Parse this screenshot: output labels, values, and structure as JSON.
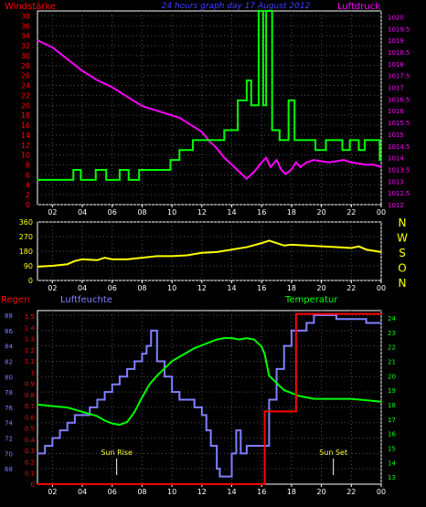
{
  "header": {
    "left": "Windstärke",
    "center": "24 hours graph day  17 August 2012",
    "right": "Luftdruck"
  },
  "colors": {
    "background": "#000000",
    "frame": "#ffffff",
    "wind": "#00ff00",
    "pressure": "#ff00ff",
    "direction": "#ffff00",
    "humidity": "#8080ff",
    "temperature": "#00ff00",
    "rain": "#ff0000",
    "grid": "#505050",
    "annotation": "#ffff40",
    "center_title": "#4040ff"
  },
  "chart_data": [
    {
      "type": "line",
      "panel": "wind-pressure",
      "x_ticks": [
        "02",
        "04",
        "06",
        "08",
        "10",
        "12",
        "14",
        "16",
        "18",
        "20",
        "22",
        "00"
      ],
      "xlim": [
        1,
        24
      ],
      "left_axis": {
        "label": "Windstärke",
        "ticks": [
          "0",
          "2",
          "4",
          "6",
          "8",
          "10",
          "12",
          "14",
          "16",
          "18",
          "20",
          "22",
          "24",
          "26",
          "28",
          "30",
          "32",
          "34",
          "36",
          "38"
        ],
        "ylim": [
          0,
          39
        ]
      },
      "right_axis": {
        "label": "Luftdruck",
        "ticks": [
          "1012",
          "1012.5",
          "1013",
          "1013.5",
          "1014",
          "1014.5",
          "1015",
          "1015.5",
          "1016",
          "1016.5",
          "1017",
          "1017.5",
          "1018",
          "1018.5",
          "1019",
          "1019.5",
          "1020"
        ],
        "ylim": [
          1012,
          1020.25
        ]
      },
      "series": [
        {
          "name": "Windstärke",
          "axis": "left",
          "color": "#00ff00",
          "step": true,
          "x": [
            1,
            3.4,
            3.9,
            4.5,
            4.9,
            5.6,
            5.9,
            6.5,
            7.1,
            7.8,
            9.9,
            10.5,
            11.4,
            12.2,
            13.5,
            14.4,
            15.0,
            15.3,
            15.8,
            16.1,
            16.3,
            16.7,
            17.2,
            17.8,
            18.2,
            18.9,
            19.6,
            20.3,
            21.4,
            21.9,
            22.5,
            22.9,
            23.9,
            24
          ],
          "y": [
            5,
            7,
            5,
            5,
            7,
            5,
            5,
            7,
            5,
            7,
            9,
            11,
            13,
            13,
            15,
            21,
            25,
            20,
            39,
            20,
            39,
            15,
            13,
            21,
            13,
            13,
            11,
            13,
            11,
            13,
            11,
            13,
            9,
            9
          ]
        },
        {
          "name": "Luftdruck",
          "axis": "right",
          "color": "#ff00ff",
          "x": [
            1,
            2,
            3,
            4,
            5,
            6,
            7,
            8,
            9,
            10,
            10.5,
            11,
            11.5,
            12,
            12.5,
            13,
            13.5,
            14,
            14.5,
            15,
            15.5,
            16,
            16.3,
            16.6,
            17,
            17.3,
            17.6,
            18,
            18.3,
            18.6,
            19,
            19.5,
            20,
            20.5,
            21,
            21.5,
            22,
            22.5,
            23,
            23.5,
            24
          ],
          "y": [
            1019.0,
            1018.7,
            1018.2,
            1017.7,
            1017.3,
            1017.0,
            1016.6,
            1016.2,
            1016.0,
            1015.8,
            1015.7,
            1015.5,
            1015.3,
            1015.1,
            1014.7,
            1014.4,
            1014.0,
            1013.7,
            1013.4,
            1013.1,
            1013.4,
            1013.8,
            1014.0,
            1013.6,
            1013.9,
            1013.5,
            1013.3,
            1013.5,
            1013.8,
            1013.6,
            1013.8,
            1013.9,
            1013.85,
            1013.8,
            1013.85,
            1013.9,
            1013.8,
            1013.75,
            1013.7,
            1013.7,
            1013.6
          ]
        }
      ]
    },
    {
      "type": "line",
      "panel": "wind-direction",
      "x_ticks": [
        "02",
        "04",
        "06",
        "08",
        "10",
        "12",
        "14",
        "16",
        "18",
        "20",
        "22",
        "00"
      ],
      "xlim": [
        1,
        24
      ],
      "left_axis": {
        "ticks": [
          "0",
          "90",
          "180",
          "270",
          "360"
        ],
        "ylim": [
          0,
          360
        ]
      },
      "right_axis": {
        "ticks": [
          "N",
          "W",
          "S",
          "O",
          "N"
        ]
      },
      "series": [
        {
          "name": "Windrichtung",
          "axis": "left",
          "color": "#ffff00",
          "x": [
            1,
            2,
            3,
            3.5,
            4,
            5,
            5.5,
            6,
            7,
            8,
            9,
            10,
            11,
            12,
            13,
            14,
            15,
            16,
            16.5,
            17,
            17.5,
            18,
            19,
            20,
            21,
            22,
            22.5,
            23,
            24
          ],
          "y": [
            85,
            90,
            100,
            120,
            130,
            125,
            140,
            130,
            130,
            140,
            150,
            150,
            155,
            170,
            175,
            190,
            205,
            230,
            245,
            230,
            215,
            220,
            215,
            210,
            205,
            200,
            210,
            190,
            175
          ]
        }
      ]
    },
    {
      "type": "line",
      "panel": "humidity-temperature-rain",
      "x_ticks": [
        "02",
        "04",
        "06",
        "08",
        "10",
        "12",
        "14",
        "16",
        "18",
        "20",
        "22",
        "00"
      ],
      "xlim": [
        1,
        24
      ],
      "labels": {
        "rain": "Regen",
        "humidity": "Luftfeuchte",
        "temperature": "Temperatur"
      },
      "axis_rain": {
        "ticks": [
          "0",
          "0.1",
          "0.2",
          "0.3",
          "0.4",
          "0.5",
          "0.6",
          "0.7",
          "0.8",
          "0.9",
          "1",
          "1.1",
          "1.2",
          "1.3",
          "1.4",
          "1.5"
        ],
        "ylim": [
          0,
          1.55
        ]
      },
      "axis_humidity": {
        "ticks": [
          "68",
          "70",
          "72",
          "74",
          "76",
          "78",
          "80",
          "82",
          "84",
          "86",
          "88"
        ],
        "ylim": [
          66,
          88.6
        ]
      },
      "axis_temperature": {
        "ticks": [
          "13",
          "14",
          "15",
          "16",
          "17",
          "18",
          "19",
          "20",
          "21",
          "22",
          "23",
          "24"
        ],
        "ylim": [
          12.5,
          24.5
        ]
      },
      "annotations": [
        {
          "text": "Sun Rise",
          "x": 6.3
        },
        {
          "text": "Sun Set",
          "x": 20.8
        }
      ],
      "series": [
        {
          "name": "Luftfeuchte",
          "axis": "humidity",
          "color": "#8080ff",
          "step": true,
          "x": [
            1,
            1.5,
            2,
            2.5,
            3,
            3.5,
            4,
            4.5,
            5,
            5.5,
            6,
            6.5,
            7,
            7.5,
            8,
            8.3,
            8.6,
            9,
            9.5,
            10,
            10.5,
            11,
            11.5,
            12,
            12.3,
            12.6,
            13,
            13.2,
            13.6,
            14,
            14.3,
            14.6,
            15,
            15.5,
            16,
            16.5,
            17,
            17.5,
            18,
            18.5,
            19,
            19.5,
            20,
            20.5,
            21,
            22,
            23,
            24
          ],
          "y": [
            70,
            71,
            72,
            73,
            74,
            75,
            75,
            76,
            77,
            78,
            79,
            80,
            81,
            82,
            83,
            84,
            86,
            82,
            80,
            78,
            77,
            77,
            76,
            75,
            73,
            71,
            68,
            67,
            67,
            70,
            73,
            70,
            71,
            71,
            71,
            77,
            81,
            84,
            86,
            86,
            87,
            88,
            88,
            88,
            87.5,
            87.5,
            87,
            87
          ]
        },
        {
          "name": "Temperatur",
          "axis": "temperature",
          "color": "#00ff00",
          "x": [
            1,
            2,
            3,
            4,
            5,
            5.5,
            6,
            6.5,
            7,
            7.5,
            8,
            8.5,
            9,
            9.5,
            10,
            10.5,
            11,
            11.5,
            12,
            12.5,
            13,
            13.5,
            14,
            14.5,
            15,
            15.5,
            16,
            16.2,
            16.5,
            17,
            17.5,
            18,
            18.5,
            19,
            19.5,
            20,
            21,
            22,
            23,
            24
          ],
          "y": [
            18.0,
            17.9,
            17.8,
            17.5,
            17.2,
            16.9,
            16.7,
            16.6,
            16.8,
            17.5,
            18.5,
            19.4,
            20.0,
            20.5,
            21.0,
            21.3,
            21.6,
            21.9,
            22.1,
            22.3,
            22.5,
            22.6,
            22.6,
            22.5,
            22.6,
            22.5,
            22.0,
            21.5,
            20.0,
            19.5,
            19.0,
            18.8,
            18.6,
            18.5,
            18.4,
            18.4,
            18.4,
            18.4,
            18.3,
            18.2
          ]
        },
        {
          "name": "Regen",
          "axis": "rain",
          "color": "#ff0000",
          "step": true,
          "x": [
            1,
            16.1,
            16.2,
            18.2,
            18.3,
            24
          ],
          "y": [
            0,
            0,
            0.65,
            0.65,
            1.52,
            1.52
          ]
        }
      ]
    }
  ]
}
